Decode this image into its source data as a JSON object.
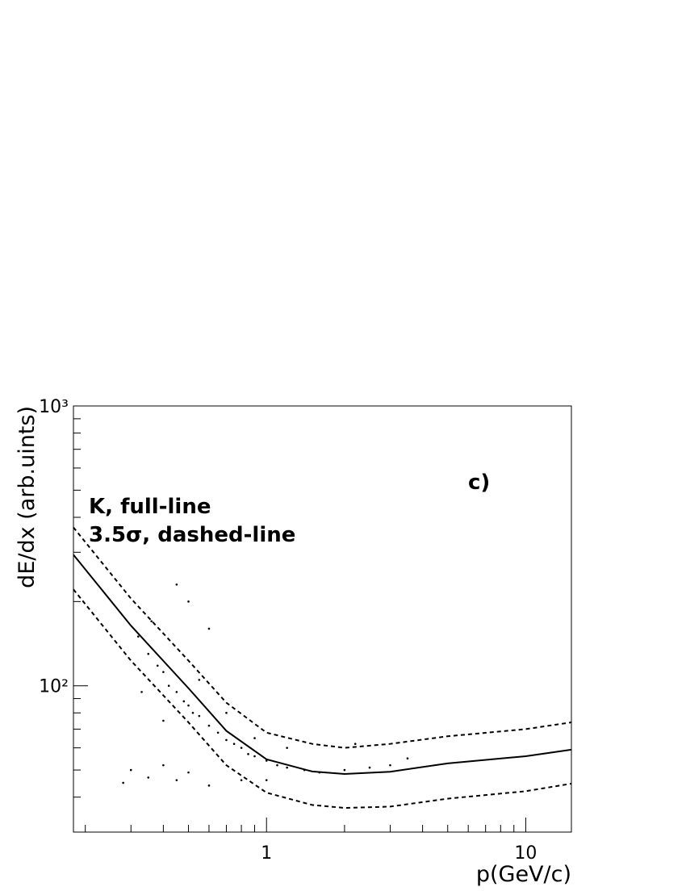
{
  "chart_data": {
    "type": "scatter",
    "x_label": "p(GeV/c)",
    "y_label": "dE/dx (arb.uints)",
    "annotations": [
      "K, full-line",
      "3.5σ, dashed-line",
      "c)"
    ],
    "xscale": "log",
    "yscale": "log",
    "xlim": [
      0.18,
      15
    ],
    "ylim": [
      30,
      1000
    ],
    "xticks": [
      1,
      10
    ],
    "xminorticks": [
      0.2,
      0.3,
      0.4,
      0.5,
      0.6,
      0.7,
      0.8,
      0.9,
      2,
      3,
      4,
      5,
      6,
      7,
      8,
      9
    ],
    "yticks": [
      {
        "value": 100,
        "label": "10²"
      },
      {
        "value": 1000,
        "label": "10³"
      }
    ],
    "yminorticks": [
      30,
      40,
      50,
      60,
      70,
      80,
      90,
      200,
      300,
      400,
      500,
      600,
      700,
      800,
      900
    ],
    "series": [
      {
        "style": "points",
        "color": "#000000",
        "x": [
          0.32,
          0.35,
          0.38,
          0.4,
          0.42,
          0.45,
          0.48,
          0.5,
          0.52,
          0.55,
          0.6,
          0.65,
          0.7,
          0.75,
          0.8,
          0.85,
          0.9,
          1.0,
          1.1,
          1.2,
          1.4,
          1.6,
          2.0,
          2.5,
          3.0,
          0.36,
          0.55,
          0.7,
          0.9,
          1.2,
          0.3,
          0.35,
          0.4,
          0.45,
          0.5,
          0.28,
          0.6,
          0.8,
          1.0,
          0.45,
          0.5,
          0.6,
          0.4,
          0.33,
          2.2,
          3.5
        ],
        "values": [
          150,
          130,
          118,
          112,
          100,
          95,
          88,
          85,
          80,
          78,
          72,
          68,
          64,
          62,
          60,
          57,
          56,
          54,
          52,
          51,
          50,
          49,
          50,
          51,
          52,
          170,
          105,
          80,
          65,
          60,
          50,
          47,
          52,
          46,
          49,
          45,
          44,
          46,
          46,
          230,
          200,
          160,
          75,
          95,
          62,
          55
        ]
      },
      {
        "style": "solid",
        "color": "#000000",
        "x": [
          0.18,
          0.3,
          0.5,
          0.7,
          1,
          1.5,
          2,
          3,
          5,
          10,
          15
        ],
        "values": [
          294,
          164,
          98,
          69,
          54.6,
          49.4,
          48.4,
          49.3,
          52.8,
          56,
          59.1
        ]
      },
      {
        "style": "dashed",
        "color": "#000000",
        "x": [
          0.18,
          0.3,
          0.5,
          0.7,
          1,
          1.5,
          2,
          3,
          5,
          10,
          15
        ],
        "values": [
          368,
          205,
          123,
          87,
          68,
          62,
          60,
          62,
          66,
          70,
          74
        ]
      },
      {
        "style": "dashed",
        "color": "#000000",
        "x": [
          0.18,
          0.3,
          0.5,
          0.7,
          1,
          1.5,
          2,
          3,
          5,
          10,
          15
        ],
        "values": [
          221,
          123,
          74,
          52,
          41.5,
          37.5,
          36.6,
          37,
          39.5,
          42,
          44.7
        ]
      }
    ]
  }
}
